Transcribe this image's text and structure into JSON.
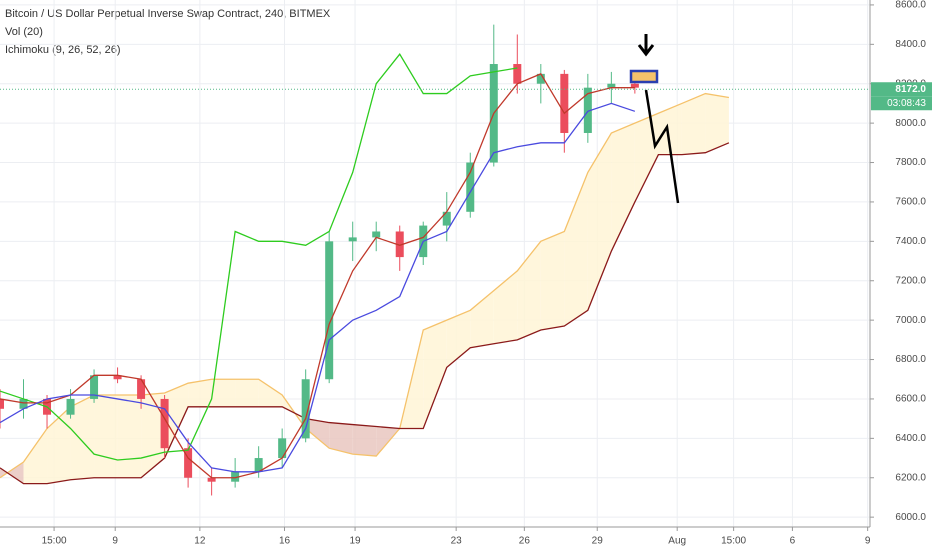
{
  "chart_data": {
    "type": "candlestick",
    "title": "Bitcoin / US Dollar Perpetual Inverse Swap Contract, 240, BITMEX",
    "indicators": [
      "Vol (20)",
      "Ichimoku (9, 26, 52, 26)"
    ],
    "xlim": [
      0,
      37
    ],
    "xticks": [
      {
        "value": 2.3,
        "label": "15:00"
      },
      {
        "value": 4.9,
        "label": "9"
      },
      {
        "value": 8.5,
        "label": "12"
      },
      {
        "value": 12.1,
        "label": "16"
      },
      {
        "value": 15.1,
        "label": "19"
      },
      {
        "value": 19.4,
        "label": "23"
      },
      {
        "value": 22.3,
        "label": "26"
      },
      {
        "value": 25.4,
        "label": "29"
      },
      {
        "value": 28.8,
        "label": "Aug"
      },
      {
        "value": 31.2,
        "label": "15:00"
      },
      {
        "value": 33.7,
        "label": "6"
      },
      {
        "value": 36.9,
        "label": "9"
      }
    ],
    "ylim": [
      5950,
      8625
    ],
    "yticks": [
      {
        "value": 6000,
        "label": "6000.0"
      },
      {
        "value": 6200,
        "label": "6200.0"
      },
      {
        "value": 6400,
        "label": "6400.0"
      },
      {
        "value": 6600,
        "label": "6600.0"
      },
      {
        "value": 6800,
        "label": "6800.0"
      },
      {
        "value": 7000,
        "label": "7000.0"
      },
      {
        "value": 7200,
        "label": "7200.0"
      },
      {
        "value": 7400,
        "label": "7400.0"
      },
      {
        "value": 7600,
        "label": "7600.0"
      },
      {
        "value": 7800,
        "label": "7800.0"
      },
      {
        "value": 8000,
        "label": "8000.0"
      },
      {
        "value": 8200,
        "label": "8200.0"
      },
      {
        "value": 8400,
        "label": "8400.0"
      },
      {
        "value": 8600,
        "label": "8600.0"
      }
    ],
    "grid": true,
    "up_color": "#53b987",
    "down_color": "#eb4d5c",
    "x": [
      0,
      1,
      2,
      3,
      4,
      5,
      6,
      7,
      8,
      9,
      10,
      11,
      12,
      13,
      14,
      15,
      16,
      17,
      18,
      19,
      20,
      21,
      22,
      23,
      24,
      25,
      26,
      27
    ],
    "open": [
      6600,
      6550,
      6600,
      6520,
      6600,
      6720,
      6700,
      6600,
      6350,
      6200,
      6180,
      6230,
      6300,
      6400,
      6700,
      7400,
      7420,
      7450,
      7320,
      7480,
      7550,
      7800,
      8300,
      8200,
      8250,
      7950,
      8180,
      8200
    ],
    "high": [
      6650,
      6700,
      6620,
      6650,
      6750,
      6760,
      6720,
      6620,
      6400,
      6250,
      6300,
      6360,
      6450,
      6750,
      7450,
      7500,
      7500,
      7480,
      7500,
      7650,
      7850,
      8500,
      8450,
      8300,
      8270,
      8250,
      8260,
      8230
    ],
    "low": [
      6450,
      6500,
      6450,
      6500,
      6580,
      6680,
      6550,
      6300,
      6150,
      6110,
      6150,
      6200,
      6250,
      6380,
      6680,
      7300,
      7350,
      7250,
      7280,
      7400,
      7520,
      7780,
      8150,
      8100,
      7850,
      7900,
      8100,
      8150
    ],
    "close": [
      6550,
      6600,
      6520,
      6600,
      6720,
      6700,
      6600,
      6350,
      6200,
      6180,
      6230,
      6300,
      6400,
      6700,
      7400,
      7420,
      7450,
      7320,
      7480,
      7550,
      7800,
      8300,
      8200,
      8250,
      7950,
      8180,
      8200,
      8180
    ],
    "lines": [
      {
        "color": "#2ecc1f",
        "x": [
          0,
          1,
          2,
          3,
          4,
          5,
          6,
          7,
          8,
          9,
          10,
          11,
          12,
          13,
          14,
          15,
          16,
          17,
          18,
          19,
          20,
          21,
          22
        ],
        "values": [
          6640,
          6600,
          6560,
          6450,
          6320,
          6290,
          6300,
          6330,
          6340,
          6600,
          7450,
          7400,
          7400,
          7380,
          7450,
          7750,
          8200,
          8350,
          8150,
          8150,
          8240,
          8260,
          8280
        ]
      },
      {
        "color": "#c0392b",
        "x": [
          0,
          1,
          2,
          3,
          4,
          5,
          6,
          7,
          8,
          9,
          10,
          11,
          12,
          13,
          14,
          15,
          16,
          17,
          18,
          19,
          20,
          21,
          22,
          23,
          24,
          25,
          26,
          27
        ],
        "values": [
          6600,
          6580,
          6580,
          6620,
          6720,
          6720,
          6700,
          6500,
          6300,
          6200,
          6200,
          6230,
          6300,
          6500,
          6980,
          7250,
          7420,
          7380,
          7420,
          7550,
          7750,
          8050,
          8200,
          8250,
          8050,
          8150,
          8180,
          8180
        ]
      },
      {
        "color": "#4a4adf",
        "x": [
          0,
          1,
          2,
          3,
          4,
          5,
          6,
          7,
          8,
          9,
          10,
          11,
          12,
          13,
          14,
          15,
          16,
          17,
          18,
          19,
          20,
          21,
          22,
          23,
          24,
          25,
          26,
          27
        ],
        "values": [
          6480,
          6550,
          6600,
          6620,
          6620,
          6600,
          6580,
          6550,
          6380,
          6250,
          6230,
          6230,
          6250,
          6450,
          6900,
          7000,
          7050,
          7120,
          7400,
          7450,
          7650,
          7850,
          7880,
          7900,
          7900,
          8060,
          8100,
          8060
        ]
      }
    ],
    "cloud": {
      "x": [
        0,
        1,
        2,
        3,
        4,
        5,
        6,
        7,
        8,
        9,
        10,
        11,
        12,
        13,
        14,
        15,
        16,
        17,
        18,
        19,
        20,
        21,
        22,
        23,
        24,
        25,
        26,
        27,
        28,
        29,
        30,
        31
      ],
      "span_a_color": "#f5c26b",
      "span_b_color": "#8b1a1a",
      "bull_fill": "#fff4d6",
      "bear_fill": "#e9c7c0",
      "span_a": [
        6200,
        6280,
        6450,
        6560,
        6620,
        6620,
        6620,
        6630,
        6680,
        6700,
        6700,
        6700,
        6620,
        6450,
        6350,
        6320,
        6310,
        6450,
        6950,
        7000,
        7050,
        7150,
        7250,
        7400,
        7450,
        7750,
        7950,
        8000,
        8050,
        8100,
        8150,
        8130
      ],
      "span_b": [
        6250,
        6170,
        6170,
        6190,
        6200,
        6200,
        6200,
        6300,
        6560,
        6560,
        6560,
        6560,
        6560,
        6500,
        6480,
        6470,
        6460,
        6450,
        6450,
        6760,
        6860,
        6880,
        6900,
        6950,
        6970,
        7050,
        7350,
        7600,
        7840,
        7840,
        7850,
        7900
      ]
    },
    "last_price": {
      "value": 8172,
      "label": "8172.0"
    },
    "countdown": "03:08:43"
  }
}
